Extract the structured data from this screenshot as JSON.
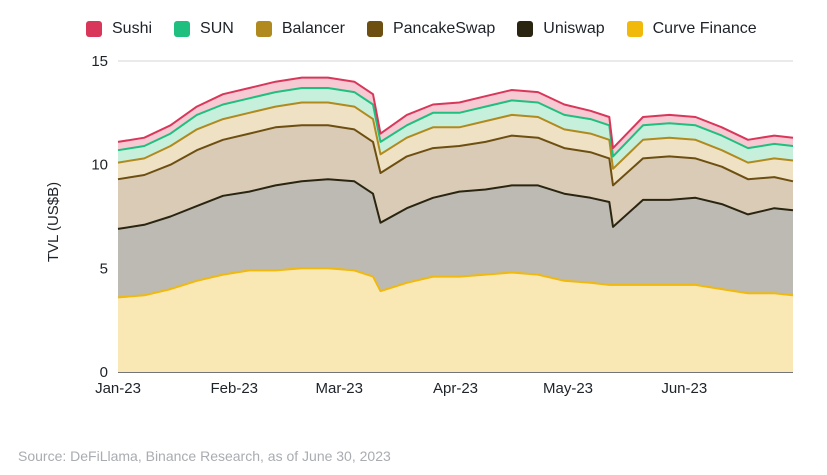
{
  "chart_data": {
    "type": "area",
    "stacked": true,
    "ylabel": "TVL (US$B)",
    "xlabel": "",
    "ylim": [
      0,
      15
    ],
    "yticks": [
      0,
      5,
      10,
      15
    ],
    "grid": true,
    "legend_position": "top",
    "x_start": "2023-01-01",
    "x_end": "2023-06-30",
    "x_ticks": [
      {
        "date": "2023-01-01",
        "label": "Jan-23"
      },
      {
        "date": "2023-02-01",
        "label": "Feb-23"
      },
      {
        "date": "2023-03-01",
        "label": "Mar-23"
      },
      {
        "date": "2023-04-01",
        "label": "Apr-23"
      },
      {
        "date": "2023-05-01",
        "label": "May-23"
      },
      {
        "date": "2023-06-01",
        "label": "Jun-23"
      }
    ],
    "x": [
      "2023-01-01",
      "2023-01-08",
      "2023-01-15",
      "2023-01-22",
      "2023-01-29",
      "2023-02-05",
      "2023-02-12",
      "2023-02-19",
      "2023-02-26",
      "2023-03-05",
      "2023-03-10",
      "2023-03-12",
      "2023-03-19",
      "2023-03-26",
      "2023-04-02",
      "2023-04-09",
      "2023-04-16",
      "2023-04-23",
      "2023-04-30",
      "2023-05-07",
      "2023-05-12",
      "2023-05-13",
      "2023-05-21",
      "2023-05-28",
      "2023-06-04",
      "2023-06-11",
      "2023-06-18",
      "2023-06-25",
      "2023-06-30"
    ],
    "cumulative_totals": {
      "Curve Finance": [
        3.6,
        3.7,
        4.0,
        4.4,
        4.7,
        4.9,
        4.9,
        5.0,
        5.0,
        4.9,
        4.6,
        3.9,
        4.3,
        4.6,
        4.6,
        4.7,
        4.8,
        4.7,
        4.4,
        4.3,
        4.2,
        4.2,
        4.2,
        4.2,
        4.2,
        4.0,
        3.8,
        3.8,
        3.7
      ],
      "Uniswap": [
        6.9,
        7.1,
        7.5,
        8.0,
        8.5,
        8.7,
        9.0,
        9.2,
        9.3,
        9.2,
        8.6,
        7.2,
        7.9,
        8.4,
        8.7,
        8.8,
        9.0,
        9.0,
        8.6,
        8.4,
        8.2,
        7.0,
        8.3,
        8.3,
        8.4,
        8.1,
        7.6,
        7.9,
        7.8
      ],
      "PancakeSwap": [
        9.3,
        9.5,
        10.0,
        10.7,
        11.2,
        11.5,
        11.8,
        11.9,
        11.9,
        11.7,
        11.1,
        9.6,
        10.4,
        10.8,
        10.9,
        11.1,
        11.4,
        11.3,
        10.8,
        10.6,
        10.3,
        9.0,
        10.3,
        10.4,
        10.3,
        9.9,
        9.3,
        9.4,
        9.2
      ],
      "Balancer": [
        10.1,
        10.3,
        10.9,
        11.7,
        12.2,
        12.5,
        12.8,
        13.0,
        13.0,
        12.8,
        12.2,
        10.5,
        11.3,
        11.8,
        11.8,
        12.1,
        12.4,
        12.3,
        11.7,
        11.5,
        11.2,
        9.8,
        11.2,
        11.3,
        11.2,
        10.7,
        10.1,
        10.3,
        10.2
      ],
      "SUN": [
        10.7,
        10.9,
        11.5,
        12.4,
        12.9,
        13.2,
        13.5,
        13.7,
        13.7,
        13.5,
        12.9,
        11.1,
        11.9,
        12.5,
        12.5,
        12.8,
        13.1,
        13.0,
        12.4,
        12.2,
        11.9,
        10.4,
        11.9,
        12.0,
        11.9,
        11.4,
        10.8,
        11.0,
        10.9
      ],
      "Sushi": [
        11.1,
        11.3,
        11.9,
        12.8,
        13.4,
        13.7,
        14.0,
        14.2,
        14.2,
        14.0,
        13.4,
        11.5,
        12.4,
        12.9,
        13.0,
        13.3,
        13.6,
        13.5,
        12.9,
        12.6,
        12.3,
        10.8,
        12.3,
        12.4,
        12.3,
        11.8,
        11.2,
        11.4,
        11.3
      ]
    },
    "series": [
      {
        "name": "Sushi",
        "color": "#d9375a"
      },
      {
        "name": "SUN",
        "color": "#1fbf7f"
      },
      {
        "name": "Balancer",
        "color": "#b08a1e"
      },
      {
        "name": "PancakeSwap",
        "color": "#6e4f12"
      },
      {
        "name": "Uniswap",
        "color": "#2a2510"
      },
      {
        "name": "Curve Finance",
        "color": "#f0b90b"
      }
    ],
    "fills": {
      "Sushi": "#f6c9d3",
      "SUN": "#c6f0dc",
      "Balancer": "#efe1c3",
      "PancakeSwap": "#d9cbb5",
      "Uniswap": "#bdbab4",
      "Curve Finance": "#f9e7b4"
    }
  },
  "source_note": "Source: DeFiLlama, Binance Research, as of June 30, 2023"
}
